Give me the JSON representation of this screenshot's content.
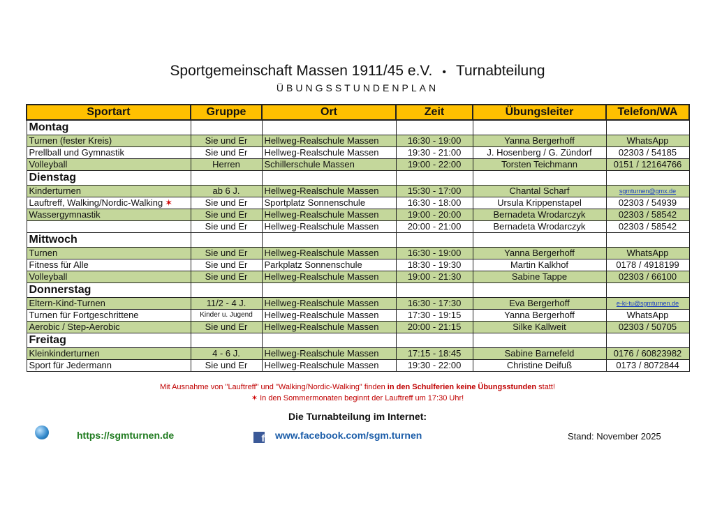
{
  "header": {
    "club": "Sportgemeinschaft Massen 1911/45 e.V.",
    "separator": "•",
    "department": "Turnabteilung",
    "subtitle": "ÜBUNGSSTUNDENPLAN"
  },
  "columns": [
    "Sportart",
    "Gruppe",
    "Ort",
    "Zeit",
    "Übungsleiter",
    "Telefon/WA"
  ],
  "colors": {
    "header": "#ffc000",
    "green_row": "#c4d79b",
    "note": "#c00000",
    "website": "#1e7a1e",
    "facebook": "#1a5ca8"
  },
  "days": [
    {
      "name": "Montag",
      "rows": [
        {
          "sport": "Turnen (fester Kreis)",
          "gruppe": "Sie und Er",
          "ort": "Hellweg-Realschule Massen",
          "zeit": "16:30 - 19:00",
          "leiter": "Yanna Bergerhoff",
          "kontakt": "WhatsApp",
          "green": true
        },
        {
          "sport": "Prellball und Gymnastik",
          "gruppe": "Sie und Er",
          "ort": "Hellweg-Realschule Massen",
          "zeit": "19:30 - 21:00",
          "leiter": "J. Hosenberg / G. Zündorf",
          "kontakt": "02303 / 54185",
          "green": false
        },
        {
          "sport": "Volleyball",
          "gruppe": "Herren",
          "ort": "Schillerschule Massen",
          "zeit": "19:00 - 22:00",
          "leiter": "Torsten Teichmann",
          "kontakt": "0151 / 12164766",
          "green": true
        }
      ]
    },
    {
      "name": "Dienstag",
      "rows": [
        {
          "sport": "Kinderturnen",
          "gruppe": "ab 6 J.",
          "ort": "Hellweg-Realschule Massen",
          "zeit": "15:30 - 17:00",
          "leiter": "Chantal Scharf",
          "kontakt": "sgmturnen@gmx.de",
          "mail": true,
          "green": true
        },
        {
          "sport": "Lauftreff, Walking/Nordic-Walking",
          "star": "✶",
          "gruppe": "Sie und Er",
          "ort": "Sportplatz Sonnenschule",
          "zeit": "16:30 - 18:00",
          "leiter": "Ursula Krippenstapel",
          "kontakt": "02303 / 54939",
          "green": false
        },
        {
          "sport": "Wassergymnastik",
          "gruppe": "Sie und Er",
          "ort": "Hellweg-Realschule Massen",
          "zeit": "19:00 - 20:00",
          "leiter": "Bernadeta Wrodarczyk",
          "kontakt": "02303 / 58542",
          "green": true
        },
        {
          "sport": "",
          "gruppe": "Sie und Er",
          "ort": "Hellweg-Realschule Massen",
          "zeit": "20:00 - 21:00",
          "leiter": "Bernadeta Wrodarczyk",
          "kontakt": "02303 / 58542",
          "green": false
        }
      ]
    },
    {
      "name": "Mittwoch",
      "rows": [
        {
          "sport": "Turnen",
          "gruppe": "Sie und Er",
          "ort": "Hellweg-Realschule Massen",
          "zeit": "16:30 - 19:00",
          "leiter": "Yanna Bergerhoff",
          "kontakt": "WhatsApp",
          "green": true
        },
        {
          "sport": "Fitness für Alle",
          "gruppe": "Sie und Er",
          "ort": "Parkplatz Sonnenschule",
          "zeit": "18:30 - 19:30",
          "leiter": "Martin Kalkhof",
          "kontakt": "0178 / 4918199",
          "green": false
        },
        {
          "sport": "Volleyball",
          "gruppe": "Sie und Er",
          "ort": "Hellweg-Realschule Massen",
          "zeit": "19:00 - 21:30",
          "leiter": "Sabine Tappe",
          "kontakt": "02303 / 66100",
          "green": true
        }
      ]
    },
    {
      "name": "Donnerstag",
      "rows": [
        {
          "sport": "Eltern-Kind-Turnen",
          "gruppe": "11/2 - 4 J.",
          "ort": "Hellweg-Realschule Massen",
          "zeit": "16:30 - 17:30",
          "leiter": "Eva Bergerhoff",
          "kontakt": "e-ki-tu@sgmturnen.de",
          "mail": true,
          "green": true
        },
        {
          "sport": "Turnen für Fortgeschrittene",
          "gruppe": "Kinder u. Jugend",
          "small": true,
          "ort": "Hellweg-Realschule Massen",
          "zeit": "17:30 - 19:15",
          "leiter": "Yanna Bergerhoff",
          "kontakt": "WhatsApp",
          "green": false
        },
        {
          "sport": "Aerobic / Step-Aerobic",
          "gruppe": "Sie und Er",
          "ort": "Hellweg-Realschule Massen",
          "zeit": "20:00 - 21:15",
          "leiter": "Silke Kallweit",
          "kontakt": "02303 / 50705",
          "green": true
        }
      ]
    },
    {
      "name": "Freitag",
      "rows": [
        {
          "sport": "Kleinkinderturnen",
          "gruppe": "4 - 6 J.",
          "ort": "Hellweg-Realschule Massen",
          "zeit": "17:15 - 18:45",
          "leiter": "Sabine Barnefeld",
          "kontakt": "0176 / 60823982",
          "green": true
        },
        {
          "sport": "Sport für Jedermann",
          "gruppe": "Sie und Er",
          "ort": "Hellweg-Realschule Massen",
          "zeit": "19:30 - 22:00",
          "leiter": "Christine Deifuß",
          "kontakt": "0173 / 8072844",
          "green": false
        }
      ]
    }
  ],
  "notes": {
    "line1_a": "Mit Ausnahme von \"Lauftreff\" und \"Walking/Nordic-Walking\" finden ",
    "line1_bold": "in den Schulferien keine Übungsstunden",
    "line1_b": " statt!",
    "star": "✶",
    "line2": " In den Sommermonaten beginnt der Lauftreff um 17:30 Uhr!"
  },
  "footer": {
    "internet": "Die Turnabteilung im Internet:",
    "website": "https://sgmturnen.de",
    "facebook": "www.facebook.com/sgm.turnen",
    "stand": "Stand: November 2025",
    "icons": [
      "globe-icon",
      "facebook-icon"
    ]
  }
}
